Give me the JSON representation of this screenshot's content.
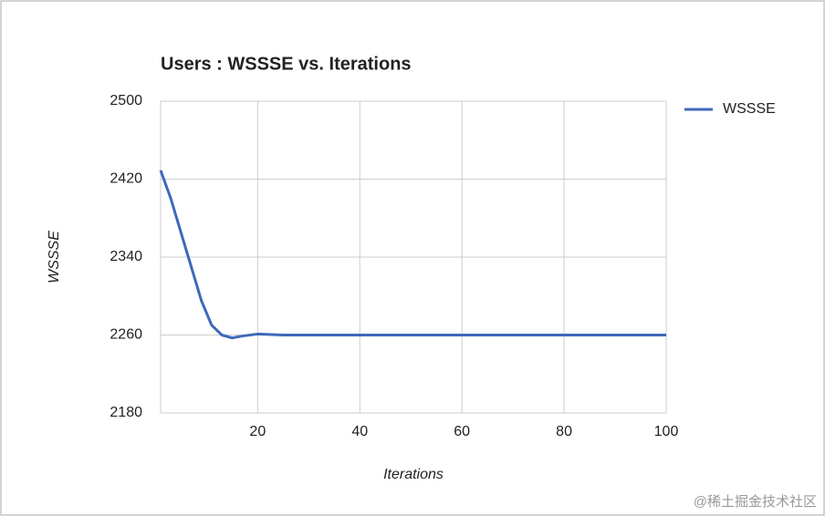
{
  "chart_data": {
    "type": "line",
    "title": "Users : WSSSE vs. Iterations",
    "x_label": "Iterations",
    "y_label": "WSSSE",
    "x": [
      1,
      3,
      5,
      7,
      9,
      11,
      13,
      15,
      17,
      20,
      25,
      30,
      40,
      50,
      60,
      80,
      100
    ],
    "series": [
      {
        "name": "WSSSE",
        "color": "#3d69b8",
        "values": [
          2429,
          2400,
          2365,
          2330,
          2295,
          2270,
          2260,
          2257,
          2259,
          2261,
          2260,
          2260,
          2260,
          2260,
          2260,
          2260,
          2260
        ]
      }
    ],
    "xlim": [
      1,
      100
    ],
    "xticks": [
      20,
      40,
      60,
      80,
      100
    ],
    "ylim": [
      2180,
      2500
    ],
    "yticks": [
      2180,
      2260,
      2340,
      2420,
      2500
    ],
    "grid": true,
    "legend": "right",
    "watermark": "@稀土掘金技术社区"
  }
}
